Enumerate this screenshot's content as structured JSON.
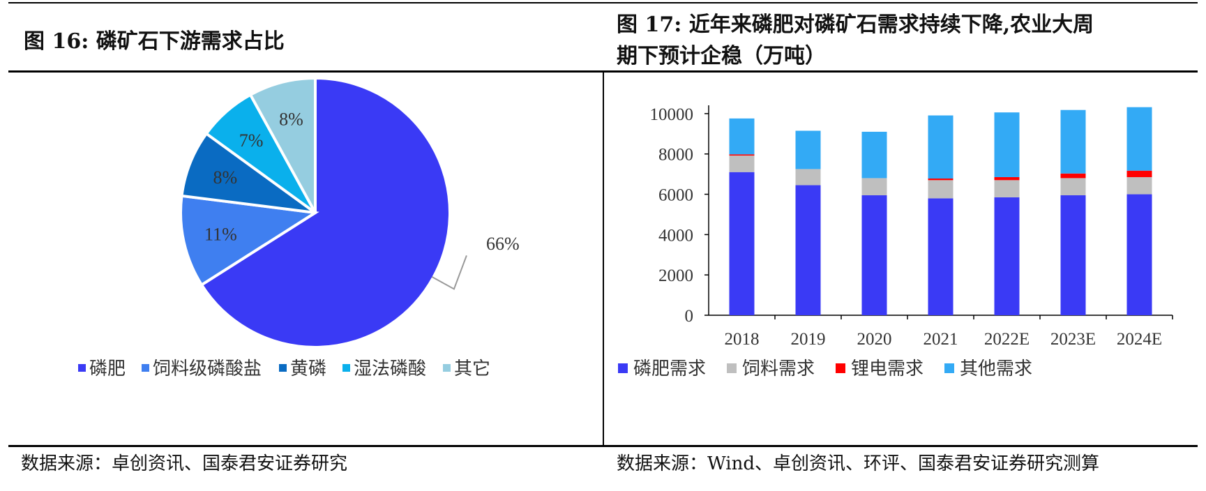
{
  "left_panel": {
    "title": "图 16:  磷矿石下游需求占比",
    "source": "数据来源：卓创资讯、国泰君安证券研究"
  },
  "right_panel": {
    "title_line1": "图 17: 近年来磷肥对磷矿石需求持续下降,农业大周",
    "title_line2": "期下预计企稳（万吨）",
    "source": "数据来源：Wind、卓创资讯、环评、国泰君安证券研究测算"
  },
  "chart_data": [
    {
      "type": "pie",
      "slices": [
        {
          "label": "磷肥",
          "value": 66,
          "display": "66%",
          "color": "#3a3af5"
        },
        {
          "label": "饲料级磷酸盐",
          "value": 11,
          "display": "11%",
          "color": "#3f7ff0"
        },
        {
          "label": "黄磷",
          "value": 8,
          "display": "8%",
          "color": "#0a6bc2"
        },
        {
          "label": "湿法磷酸",
          "value": 7,
          "display": "7%",
          "color": "#0ab0ec"
        },
        {
          "label": "其它",
          "value": 8,
          "display": "8%",
          "color": "#95cde0"
        }
      ],
      "legend_position": "bottom"
    },
    {
      "type": "bar",
      "stacked": true,
      "categories": [
        "2018",
        "2019",
        "2020",
        "2021",
        "2022E",
        "2023E",
        "2024E"
      ],
      "series": [
        {
          "name": "磷肥需求",
          "color": "#3a3af5",
          "values": [
            7100,
            6450,
            5950,
            5800,
            5850,
            5950,
            6000
          ]
        },
        {
          "name": "饲料需求",
          "color": "#bfbfbf",
          "values": [
            820,
            800,
            850,
            900,
            850,
            850,
            850
          ]
        },
        {
          "name": "锂电需求",
          "color": "#ff0000",
          "values": [
            60,
            0,
            0,
            80,
            150,
            230,
            320
          ]
        },
        {
          "name": "其他需求",
          "color": "#33aaf5",
          "values": [
            1780,
            1900,
            2300,
            3130,
            3210,
            3150,
            3150
          ]
        }
      ],
      "ylim": [
        0,
        11000
      ],
      "yticks": [
        0,
        2000,
        4000,
        6000,
        8000,
        10000
      ],
      "grid": false,
      "legend_position": "bottom"
    }
  ]
}
